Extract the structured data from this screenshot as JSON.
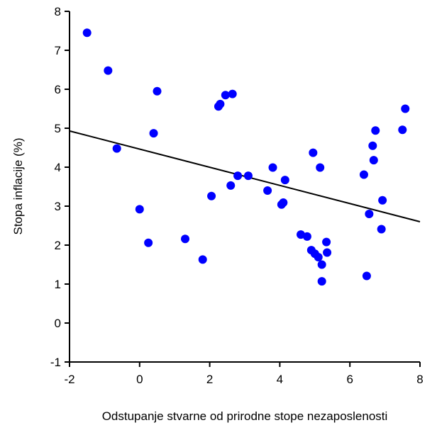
{
  "chart_data": {
    "type": "scatter",
    "title": "",
    "xlabel": "Odstupanje stvarne od prirodne stope nezaposlenosti",
    "ylabel": "Stopa inflacije (%)",
    "xlim": [
      -2,
      8
    ],
    "ylim": [
      -1,
      8
    ],
    "x_ticks": [
      -2,
      0,
      2,
      4,
      6,
      8
    ],
    "y_ticks": [
      -1,
      0,
      1,
      2,
      3,
      4,
      5,
      6,
      7,
      8
    ],
    "x_tick_labels": [
      "-2",
      "0",
      "2",
      "4",
      "6",
      "8"
    ],
    "y_tick_labels": [
      "-1",
      "0",
      "1",
      "2",
      "3",
      "4",
      "5",
      "6",
      "7",
      "8"
    ],
    "grid": false,
    "legend": "none",
    "point_color": "#0000ff",
    "line_color": "#000000",
    "points": [
      {
        "x": -1.5,
        "y": 7.45
      },
      {
        "x": -0.9,
        "y": 6.48
      },
      {
        "x": -0.65,
        "y": 4.48
      },
      {
        "x": 0.0,
        "y": 2.92
      },
      {
        "x": 0.25,
        "y": 2.06
      },
      {
        "x": 0.4,
        "y": 4.87
      },
      {
        "x": 0.5,
        "y": 5.95
      },
      {
        "x": 1.3,
        "y": 2.16
      },
      {
        "x": 1.8,
        "y": 1.63
      },
      {
        "x": 2.05,
        "y": 3.26
      },
      {
        "x": 2.25,
        "y": 5.56
      },
      {
        "x": 2.3,
        "y": 5.62
      },
      {
        "x": 2.45,
        "y": 5.85
      },
      {
        "x": 2.6,
        "y": 3.53
      },
      {
        "x": 2.65,
        "y": 5.88
      },
      {
        "x": 2.8,
        "y": 3.78
      },
      {
        "x": 3.1,
        "y": 3.78
      },
      {
        "x": 3.65,
        "y": 3.4
      },
      {
        "x": 3.8,
        "y": 3.99
      },
      {
        "x": 4.05,
        "y": 3.04
      },
      {
        "x": 4.1,
        "y": 3.09
      },
      {
        "x": 4.15,
        "y": 3.67
      },
      {
        "x": 4.6,
        "y": 2.27
      },
      {
        "x": 4.78,
        "y": 2.22
      },
      {
        "x": 4.9,
        "y": 1.87
      },
      {
        "x": 4.95,
        "y": 4.37
      },
      {
        "x": 5.0,
        "y": 1.78
      },
      {
        "x": 5.1,
        "y": 1.69
      },
      {
        "x": 5.15,
        "y": 3.99
      },
      {
        "x": 5.2,
        "y": 1.5
      },
      {
        "x": 5.2,
        "y": 1.07
      },
      {
        "x": 5.33,
        "y": 2.08
      },
      {
        "x": 5.35,
        "y": 1.81
      },
      {
        "x": 6.4,
        "y": 3.81
      },
      {
        "x": 6.48,
        "y": 1.21
      },
      {
        "x": 6.55,
        "y": 2.8
      },
      {
        "x": 6.65,
        "y": 4.55
      },
      {
        "x": 6.68,
        "y": 4.18
      },
      {
        "x": 6.73,
        "y": 4.94
      },
      {
        "x": 6.9,
        "y": 2.41
      },
      {
        "x": 6.93,
        "y": 3.15
      },
      {
        "x": 7.5,
        "y": 4.96
      },
      {
        "x": 7.58,
        "y": 5.5
      }
    ],
    "trend_line": {
      "x": [
        -2,
        8
      ],
      "y": [
        4.93,
        2.6
      ]
    }
  }
}
